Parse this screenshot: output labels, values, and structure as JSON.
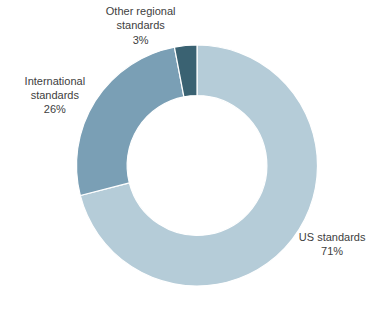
{
  "chart_data": {
    "type": "pie",
    "categories": [
      "US standards",
      "International\nstandards",
      "Other regional\nstandards"
    ],
    "values": [
      71,
      26,
      3
    ],
    "value_labels": [
      "71%",
      "26%",
      "3%"
    ],
    "colors": [
      "#b5ccd8",
      "#7a9fb5",
      "#3a6272"
    ]
  }
}
